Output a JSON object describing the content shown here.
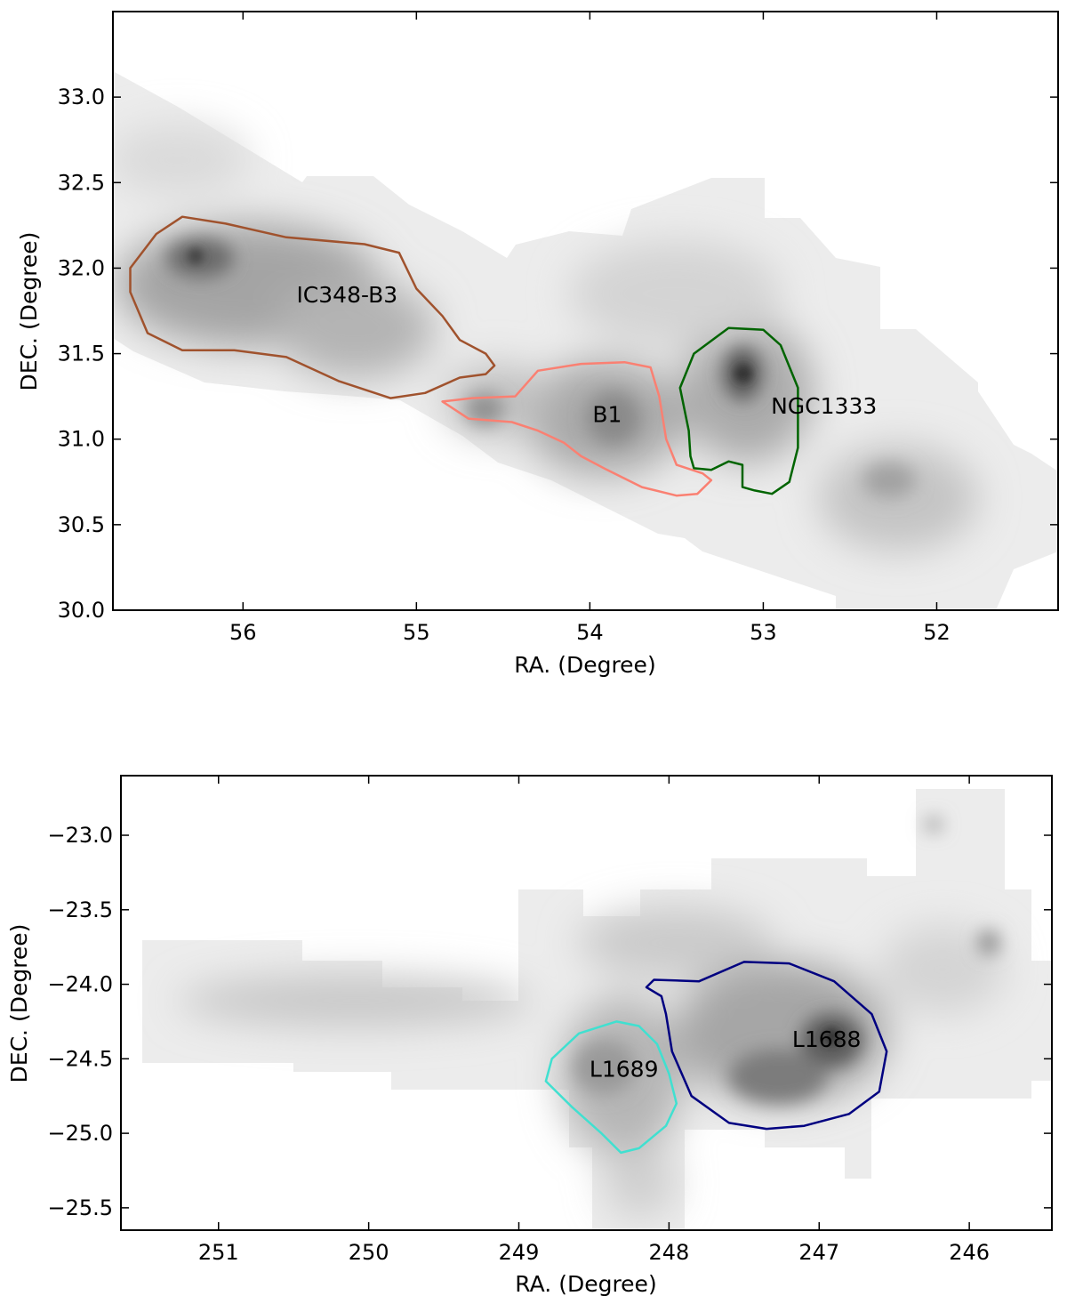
{
  "chart_data": [
    {
      "type": "map",
      "xlabel": "RA. (Degree)",
      "ylabel": "DEC. (Degree)",
      "xlim": [
        56.75,
        51.3
      ],
      "ylim": [
        30.0,
        33.5
      ],
      "x_inverted": true,
      "xticks": [
        56,
        55,
        54,
        53,
        52
      ],
      "xtick_labels": [
        "56",
        "55",
        "54",
        "53",
        "52"
      ],
      "yticks": [
        30.0,
        30.5,
        31.0,
        31.5,
        32.0,
        32.5,
        33.0
      ],
      "ytick_labels": [
        "30.0",
        "30.5",
        "31.0",
        "31.5",
        "32.0",
        "32.5",
        "33.0"
      ],
      "colormap": "greyscale",
      "regions": [
        {
          "name": "IC348-B3",
          "color": "#a0522d",
          "label_at": [
            55.4,
            31.8
          ],
          "contour": [
            [
              56.35,
              32.3
            ],
            [
              56.1,
              32.26
            ],
            [
              55.75,
              32.18
            ],
            [
              55.3,
              32.14
            ],
            [
              55.1,
              32.09
            ],
            [
              55.0,
              31.88
            ],
            [
              54.85,
              31.72
            ],
            [
              54.75,
              31.58
            ],
            [
              54.6,
              31.5
            ],
            [
              54.55,
              31.43
            ],
            [
              54.6,
              31.38
            ],
            [
              54.75,
              31.36
            ],
            [
              54.95,
              31.27
            ],
            [
              55.15,
              31.24
            ],
            [
              55.45,
              31.34
            ],
            [
              55.75,
              31.48
            ],
            [
              56.05,
              31.52
            ],
            [
              56.35,
              31.52
            ],
            [
              56.55,
              31.62
            ],
            [
              56.65,
              31.86
            ],
            [
              56.65,
              32.0
            ],
            [
              56.5,
              32.2
            ]
          ]
        },
        {
          "name": "B1",
          "color": "#fa8072",
          "label_at": [
            53.9,
            31.1
          ],
          "contour": [
            [
              54.85,
              31.22
            ],
            [
              54.68,
              31.24
            ],
            [
              54.43,
              31.25
            ],
            [
              54.3,
              31.4
            ],
            [
              54.05,
              31.44
            ],
            [
              53.8,
              31.45
            ],
            [
              53.65,
              31.42
            ],
            [
              53.6,
              31.25
            ],
            [
              53.56,
              31.0
            ],
            [
              53.5,
              30.85
            ],
            [
              53.35,
              30.8
            ],
            [
              53.3,
              30.76
            ],
            [
              53.38,
              30.68
            ],
            [
              53.5,
              30.67
            ],
            [
              53.7,
              30.72
            ],
            [
              53.9,
              30.82
            ],
            [
              54.05,
              30.9
            ],
            [
              54.15,
              30.98
            ],
            [
              54.3,
              31.05
            ],
            [
              54.45,
              31.1
            ],
            [
              54.7,
              31.12
            ]
          ]
        },
        {
          "name": "NGC1333",
          "color": "#006400",
          "label_at": [
            52.65,
            31.15
          ],
          "contour": [
            [
              53.2,
              31.65
            ],
            [
              53.0,
              31.64
            ],
            [
              52.9,
              31.55
            ],
            [
              52.8,
              31.3
            ],
            [
              52.8,
              30.95
            ],
            [
              52.85,
              30.75
            ],
            [
              52.95,
              30.68
            ],
            [
              53.05,
              30.7
            ],
            [
              53.12,
              30.72
            ],
            [
              53.12,
              30.85
            ],
            [
              53.2,
              30.87
            ],
            [
              53.3,
              30.82
            ],
            [
              53.4,
              30.83
            ],
            [
              53.42,
              30.9
            ],
            [
              53.43,
              31.05
            ],
            [
              53.48,
              31.3
            ],
            [
              53.4,
              31.5
            ]
          ]
        }
      ]
    },
    {
      "type": "map",
      "xlabel": "RA. (Degree)",
      "ylabel": "DEC. (Degree)",
      "xlim": [
        251.65,
        245.45
      ],
      "ylim": [
        -25.65,
        -22.6
      ],
      "x_inverted": true,
      "xticks": [
        251,
        250,
        249,
        248,
        247,
        246
      ],
      "xtick_labels": [
        "251",
        "250",
        "249",
        "248",
        "247",
        "246"
      ],
      "yticks": [
        -25.5,
        -25.0,
        -24.5,
        -24.0,
        -23.5,
        -23.0
      ],
      "ytick_labels": [
        "−25.5",
        "−25.0",
        "−24.5",
        "−24.0",
        "−23.5",
        "−23.0"
      ],
      "colormap": "greyscale",
      "regions": [
        {
          "name": "L1688",
          "color": "#000080",
          "label_at": [
            246.95,
            -24.42
          ],
          "contour": [
            [
              248.1,
              -23.97
            ],
            [
              247.8,
              -23.98
            ],
            [
              247.5,
              -23.85
            ],
            [
              247.2,
              -23.86
            ],
            [
              246.9,
              -23.98
            ],
            [
              246.65,
              -24.2
            ],
            [
              246.55,
              -24.45
            ],
            [
              246.6,
              -24.72
            ],
            [
              246.8,
              -24.87
            ],
            [
              247.1,
              -24.95
            ],
            [
              247.35,
              -24.97
            ],
            [
              247.6,
              -24.93
            ],
            [
              247.85,
              -24.75
            ],
            [
              247.98,
              -24.45
            ],
            [
              248.02,
              -24.2
            ],
            [
              248.05,
              -24.08
            ],
            [
              248.15,
              -24.02
            ]
          ]
        },
        {
          "name": "L1689",
          "color": "#40e0d0",
          "label_at": [
            248.3,
            -24.62
          ],
          "contour": [
            [
              248.35,
              -24.25
            ],
            [
              248.6,
              -24.33
            ],
            [
              248.78,
              -24.5
            ],
            [
              248.82,
              -24.65
            ],
            [
              248.65,
              -24.82
            ],
            [
              248.45,
              -25.0
            ],
            [
              248.32,
              -25.13
            ],
            [
              248.2,
              -25.1
            ],
            [
              248.02,
              -24.95
            ],
            [
              247.95,
              -24.8
            ],
            [
              248.0,
              -24.6
            ],
            [
              248.08,
              -24.4
            ],
            [
              248.2,
              -24.28
            ]
          ]
        }
      ]
    }
  ]
}
